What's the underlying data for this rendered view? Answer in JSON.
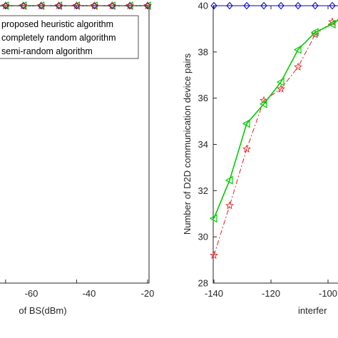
{
  "chart_data": [
    {
      "type": "line",
      "xlabel": "of BS(dBm)",
      "ylabel": "",
      "x_ticks": [
        "-60",
        "-40",
        "-20"
      ],
      "xlim": [
        -70,
        -20
      ],
      "x": [
        -70,
        -65,
        -60,
        -55,
        -50,
        -45,
        -40,
        -35,
        -30,
        -25,
        -20
      ],
      "series": [
        {
          "name": "proposed heuristic algorithm",
          "color": "#00cc00",
          "marker": "triangle-left",
          "dash": "solid",
          "values": [
            40,
            40,
            40,
            40,
            40,
            40,
            40,
            40,
            40,
            40,
            40
          ]
        },
        {
          "name": "completely random algorithm",
          "color": "#0000cc",
          "marker": "diamond",
          "dash": "solid",
          "values": [
            40,
            40,
            40,
            40,
            40,
            40,
            40,
            40,
            40,
            40,
            40
          ]
        },
        {
          "name": "semi-random algorithm",
          "color": "#cc2222",
          "marker": "star",
          "dash": "dashdot",
          "values": [
            40,
            40,
            40,
            40,
            40,
            40,
            40,
            40,
            40,
            40,
            40
          ]
        }
      ],
      "legend": {
        "position": "top-left",
        "entries": [
          "proposed heuristic algorithm",
          "completely random algorithm",
          "semi-random algorithm"
        ]
      }
    },
    {
      "type": "line",
      "xlabel": "interfer",
      "ylabel": "Number of D2D communication device pairs",
      "x_ticks": [
        "-140",
        "-120",
        "-100"
      ],
      "y_ticks": [
        "28",
        "30",
        "32",
        "34",
        "36",
        "38",
        "40"
      ],
      "xlim": [
        -140,
        -95
      ],
      "ylim": [
        28,
        40
      ],
      "x": [
        -140,
        -134.5,
        -128.5,
        -122.5,
        -116.5,
        -110.5,
        -104.5,
        -98.5,
        -95
      ],
      "series": [
        {
          "name": "proposed heuristic algorithm",
          "color": "#00cc00",
          "marker": "triangle-left",
          "dash": "solid",
          "values": [
            30.8,
            32.45,
            34.9,
            35.75,
            36.7,
            38.1,
            38.85,
            39.2,
            39.5
          ]
        },
        {
          "name": "completely random algorithm",
          "color": "#0000cc",
          "marker": "diamond",
          "dash": "solid",
          "values": [
            40,
            40,
            40,
            40,
            40,
            40,
            40,
            40,
            40
          ]
        },
        {
          "name": "semi-random algorithm",
          "color": "#dd2222",
          "marker": "star",
          "dash": "dashdot",
          "values": [
            29.2,
            31.35,
            33.8,
            35.9,
            36.4,
            37.35,
            38.75,
            39.3,
            39.5
          ]
        }
      ]
    }
  ]
}
